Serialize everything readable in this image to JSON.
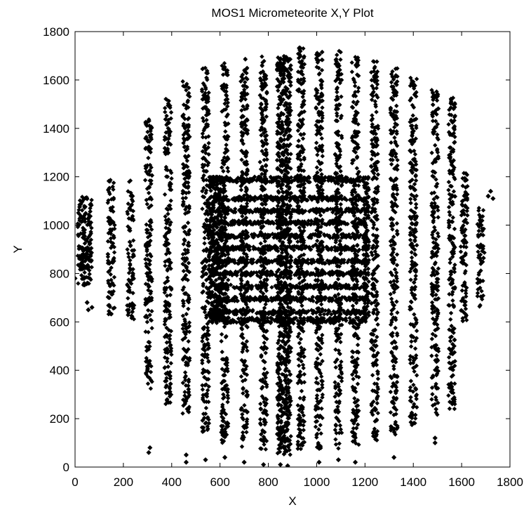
{
  "chart_data": {
    "type": "scatter",
    "title": "MOS1 Micrometeorite X,Y Plot",
    "xlabel": "X",
    "ylabel": "Y",
    "xlim": [
      0,
      1800
    ],
    "ylim": [
      0,
      1800
    ],
    "xticks": [
      "0",
      "200",
      "400",
      "600",
      "800",
      "1000",
      "1200",
      "1400",
      "1600",
      "1800"
    ],
    "yticks": [
      "0",
      "200",
      "400",
      "600",
      "800",
      "1000",
      "1200",
      "1400",
      "1600",
      "1800"
    ],
    "grid": false,
    "marker_color": "#000000",
    "marker": "diamond",
    "vertical_stripes": [
      {
        "x": 40,
        "y": [
          750,
          1120
        ],
        "wide": true
      },
      {
        "x": 150,
        "y": [
          610,
          1190
        ]
      },
      {
        "x": 230,
        "y": [
          605,
          1185
        ]
      },
      {
        "x": 305,
        "y": [
          320,
          1440
        ]
      },
      {
        "x": 385,
        "y": [
          260,
          1540
        ]
      },
      {
        "x": 460,
        "y": [
          200,
          1600
        ]
      },
      {
        "x": 540,
        "y": [
          130,
          1650
        ]
      },
      {
        "x": 620,
        "y": [
          100,
          1680
        ]
      },
      {
        "x": 700,
        "y": [
          80,
          1690
        ]
      },
      {
        "x": 780,
        "y": [
          70,
          1700
        ]
      },
      {
        "x": 865,
        "y": [
          50,
          1700
        ],
        "wide": true
      },
      {
        "x": 935,
        "y": [
          60,
          1740
        ]
      },
      {
        "x": 1010,
        "y": [
          60,
          1730
        ]
      },
      {
        "x": 1090,
        "y": [
          70,
          1720
        ]
      },
      {
        "x": 1160,
        "y": [
          90,
          1700
        ]
      },
      {
        "x": 1240,
        "y": [
          110,
          1680
        ]
      },
      {
        "x": 1320,
        "y": [
          130,
          1650
        ]
      },
      {
        "x": 1400,
        "y": [
          170,
          1610
        ]
      },
      {
        "x": 1490,
        "y": [
          210,
          1560
        ]
      },
      {
        "x": 1560,
        "y": [
          240,
          1530
        ]
      },
      {
        "x": 1610,
        "y": [
          600,
          1220
        ]
      },
      {
        "x": 1680,
        "y": [
          660,
          1080
        ]
      }
    ],
    "box": {
      "x": [
        555,
        1205
      ],
      "y": [
        600,
        1200
      ]
    },
    "horizontal_stripes_y": [
      640,
      695,
      745,
      800,
      850,
      905,
      955,
      1010,
      1060,
      1110
    ],
    "outliers": [
      {
        "x": 0,
        "y": 780
      },
      {
        "x": 50,
        "y": 680
      },
      {
        "x": 55,
        "y": 650
      },
      {
        "x": 70,
        "y": 660
      },
      {
        "x": 305,
        "y": 60
      },
      {
        "x": 310,
        "y": 80
      },
      {
        "x": 460,
        "y": 20
      },
      {
        "x": 460,
        "y": 50
      },
      {
        "x": 540,
        "y": 30
      },
      {
        "x": 620,
        "y": 40
      },
      {
        "x": 700,
        "y": 20
      },
      {
        "x": 780,
        "y": 10
      },
      {
        "x": 850,
        "y": 10
      },
      {
        "x": 880,
        "y": 5
      },
      {
        "x": 1010,
        "y": 20
      },
      {
        "x": 1090,
        "y": 30
      },
      {
        "x": 1160,
        "y": 20
      },
      {
        "x": 1320,
        "y": 40
      },
      {
        "x": 1490,
        "y": 100
      },
      {
        "x": 1490,
        "y": 120
      },
      {
        "x": 1710,
        "y": 1120
      },
      {
        "x": 1730,
        "y": 1110
      },
      {
        "x": 1720,
        "y": 1140
      }
    ]
  }
}
